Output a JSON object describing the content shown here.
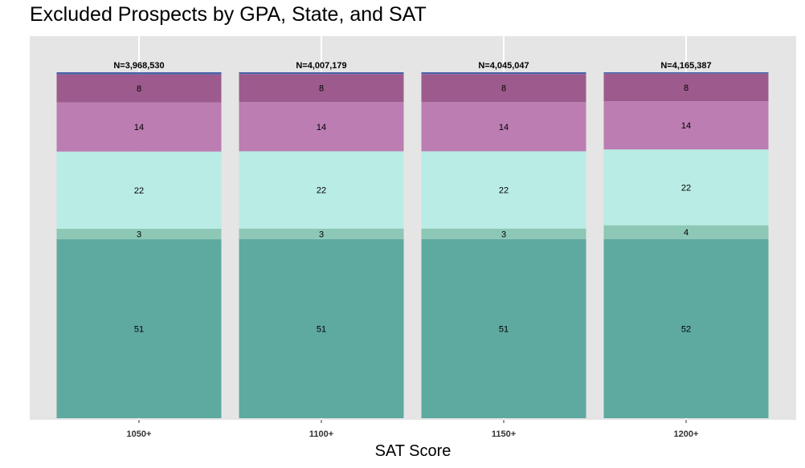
{
  "chart_data": {
    "type": "bar",
    "stacked": true,
    "title": "Excluded Prospects by GPA, State, and SAT",
    "xlabel": "SAT Score",
    "ylabel": "",
    "categories": [
      "1050+",
      "1100+",
      "1150+",
      "1200+"
    ],
    "totals": [
      "N=3,968,530",
      "N=4,007,179",
      "N=4,045,047",
      "N=4,165,387"
    ],
    "ylim": [
      0,
      100
    ],
    "grid": true,
    "legend": "none",
    "series": [
      {
        "color": "#5ea9a0",
        "values": [
          51,
          51,
          51,
          52
        ],
        "labels": [
          "51",
          "51",
          "51",
          "52"
        ]
      },
      {
        "color": "#8dc7b6",
        "values": [
          3,
          3,
          3,
          4
        ],
        "labels": [
          "3",
          "3",
          "3",
          "4"
        ]
      },
      {
        "color": "#b9ece4",
        "values": [
          22,
          22,
          22,
          22
        ],
        "labels": [
          "22",
          "22",
          "22",
          "22"
        ]
      },
      {
        "color": "#bb7db2",
        "values": [
          14,
          14,
          14,
          14
        ],
        "labels": [
          "14",
          "14",
          "14",
          "14"
        ]
      },
      {
        "color": "#9d5b8d",
        "values": [
          8,
          8,
          8,
          8
        ],
        "labels": [
          "8",
          "8",
          "8",
          "8"
        ]
      },
      {
        "color": "#4a63a8",
        "values": [
          0.6,
          0.5,
          0.5,
          0.4
        ],
        "labels": [
          "",
          "",
          "",
          ""
        ]
      }
    ],
    "background_color": "#e5e5e5",
    "gridline_color": "#ffffff"
  }
}
